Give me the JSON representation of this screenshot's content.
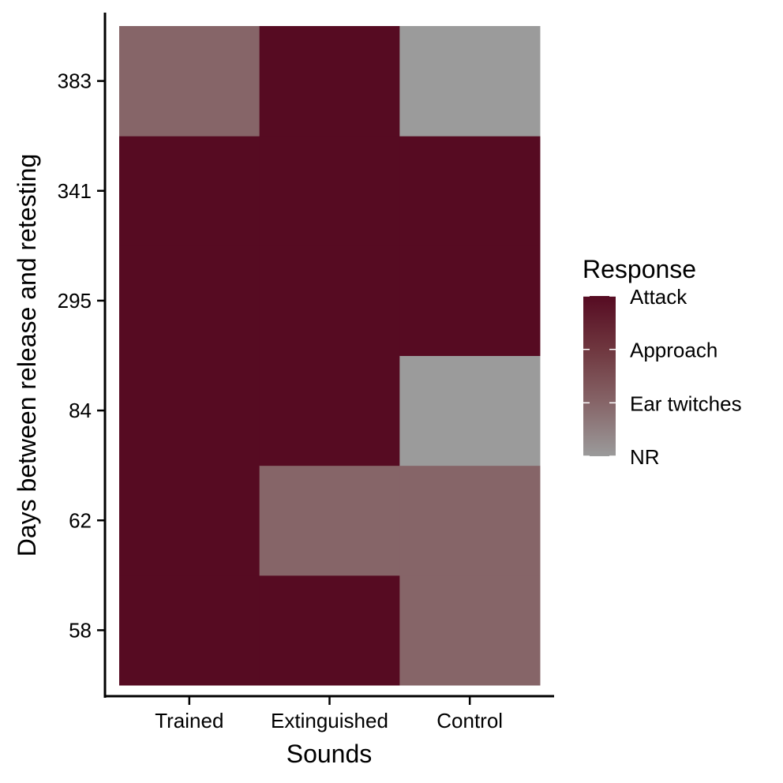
{
  "chart_data": {
    "type": "heatmap",
    "xlabel": "Sounds",
    "ylabel": "Days between release and retesting",
    "x_categories": [
      "Trained",
      "Extinguished",
      "Control"
    ],
    "y_categories": [
      "58",
      "62",
      "84",
      "295",
      "341",
      "383"
    ],
    "levels": [
      "NR",
      "Ear twitches",
      "Approach",
      "Attack"
    ],
    "cells": [
      {
        "x": "Trained",
        "y": "58",
        "response": "Attack"
      },
      {
        "x": "Trained",
        "y": "62",
        "response": "Attack"
      },
      {
        "x": "Trained",
        "y": "84",
        "response": "Attack"
      },
      {
        "x": "Trained",
        "y": "295",
        "response": "Attack"
      },
      {
        "x": "Trained",
        "y": "341",
        "response": "Attack"
      },
      {
        "x": "Trained",
        "y": "383",
        "response": "Ear twitches"
      },
      {
        "x": "Extinguished",
        "y": "58",
        "response": "Attack"
      },
      {
        "x": "Extinguished",
        "y": "62",
        "response": "Ear twitches"
      },
      {
        "x": "Extinguished",
        "y": "84",
        "response": "Attack"
      },
      {
        "x": "Extinguished",
        "y": "295",
        "response": "Attack"
      },
      {
        "x": "Extinguished",
        "y": "341",
        "response": "Attack"
      },
      {
        "x": "Extinguished",
        "y": "383",
        "response": "Attack"
      },
      {
        "x": "Control",
        "y": "58",
        "response": "Ear twitches"
      },
      {
        "x": "Control",
        "y": "62",
        "response": "Ear twitches"
      },
      {
        "x": "Control",
        "y": "84",
        "response": "NR"
      },
      {
        "x": "Control",
        "y": "295",
        "response": "Attack"
      },
      {
        "x": "Control",
        "y": "341",
        "response": "Attack"
      },
      {
        "x": "Control",
        "y": "383",
        "response": "NR"
      }
    ],
    "legend": {
      "title": "Response",
      "placement": "right",
      "entries": [
        "Attack",
        "Approach",
        "Ear twitches",
        "NR"
      ]
    },
    "colors": {
      "Attack": "#560b22",
      "Approach": "#6f373f",
      "Ear twitches": "#866568",
      "NR": "#9b9b9b"
    },
    "grid": false
  }
}
